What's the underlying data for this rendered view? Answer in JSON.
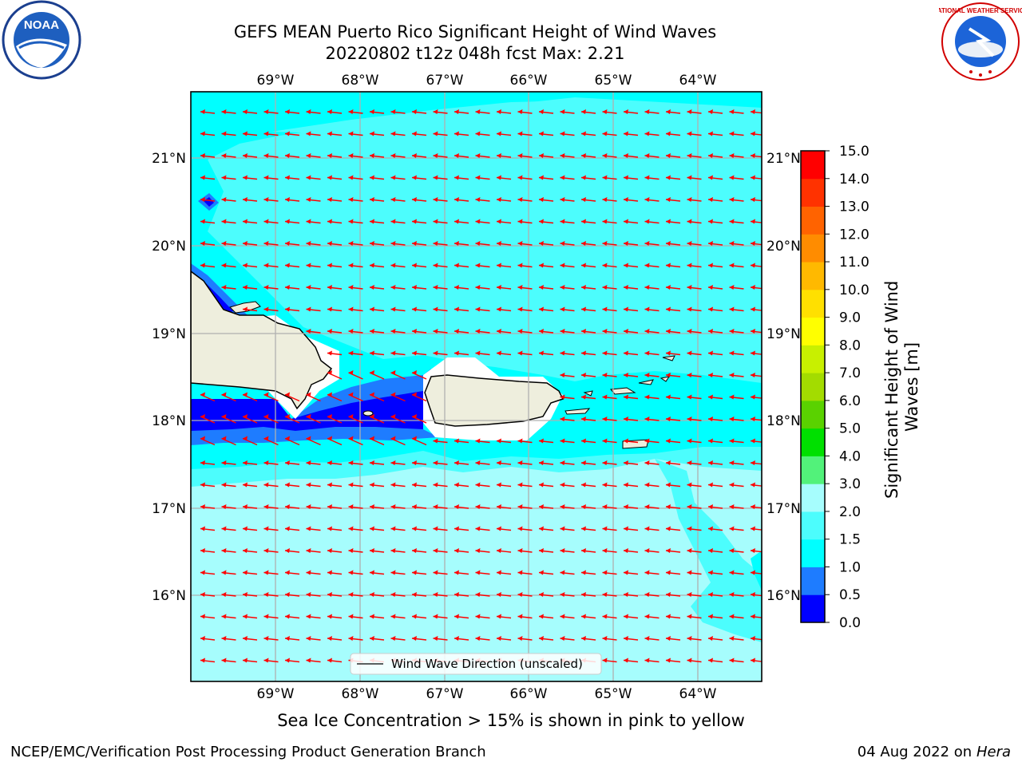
{
  "header": {
    "title_line1": "GEFS MEAN Puerto Rico Significant Height of Wind Waves",
    "title_line2": "20220802 t12z 048h fcst   Max: 2.21"
  },
  "logos": {
    "left": {
      "icon": "noaa-logo",
      "text": "NOAA"
    },
    "right": {
      "icon": "nws-logo",
      "text": "NATIONAL WEATHER SERVICE"
    }
  },
  "map": {
    "lon_range": [
      -70.0,
      -63.25
    ],
    "lat_range": [
      15.05,
      21.75
    ],
    "lon_ticks": [
      "69°W",
      "68°W",
      "67°W",
      "66°W",
      "65°W",
      "64°W"
    ],
    "lat_ticks": [
      "21°N",
      "20°N",
      "19°N",
      "18°N",
      "17°N",
      "16°N"
    ],
    "grid": true,
    "legend": {
      "label": "Wind Wave Direction (unscaled)",
      "placement": "bottom-center"
    },
    "arrow_color": "#ff0000",
    "arrow_direction": "west"
  },
  "colorbar": {
    "label_line1": "Significant Height of Wind",
    "label_line2": "Waves [m]",
    "ticks": [
      "15.0",
      "14.0",
      "13.0",
      "12.0",
      "11.0",
      "10.0",
      "9.0",
      "8.0",
      "7.0",
      "6.0",
      "5.0",
      "4.0",
      "3.0",
      "2.0",
      "1.5",
      "1.0",
      "0.5",
      "0.0"
    ],
    "colors_bottom_to_top": [
      "#0000ff",
      "#1e7cff",
      "#00ffff",
      "#4cfdfd",
      "#a6fdfd",
      "#52f27a",
      "#00e000",
      "#5ad200",
      "#a3dc00",
      "#c8f000",
      "#ffff00",
      "#ffe000",
      "#ffb900",
      "#ff8c00",
      "#ff6300",
      "#ff3200",
      "#ff0000"
    ]
  },
  "land_color": "#eeeedd",
  "ice_note": "Sea Ice Concentration > 15% is shown in pink to yellow",
  "footer": {
    "left": "NCEP/EMC/Verification Post Processing Product Generation Branch",
    "right_date": "04 Aug 2022 on",
    "right_host": "Hera"
  }
}
